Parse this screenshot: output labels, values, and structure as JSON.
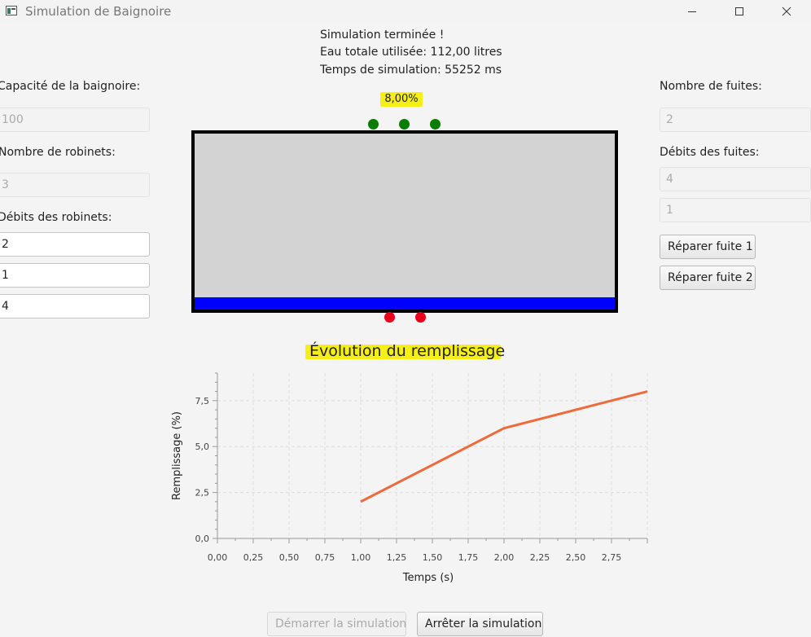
{
  "window": {
    "title": "Simulation de Baignoire",
    "controls": [
      "minimize",
      "maximize",
      "close"
    ]
  },
  "status": {
    "line1": "Simulation terminée !",
    "line2": "Eau totale utilisée: 112,00 litres",
    "line3": "Temps de simulation: 55252 ms"
  },
  "left_panel": {
    "capacity_label": "Capacité de la baignoire:",
    "capacity_value": "100",
    "taps_label": "Nombre de robinets:",
    "taps_value": "3",
    "tap_flows_label": "Débits des robinets:",
    "tap_flows": [
      "2",
      "1",
      "4"
    ]
  },
  "right_panel": {
    "leaks_label": "Nombre de fuites:",
    "leaks_value": "2",
    "leak_flows_label": "Débits des fuites:",
    "leak_flows": [
      "4",
      "1"
    ],
    "repair_buttons": [
      "Réparer fuite 1",
      "Réparer fuite 2"
    ]
  },
  "tub": {
    "fill_percent_label": "8,00%",
    "fill_fraction": 0.08,
    "tap_count": 3,
    "leak_count": 2
  },
  "bottom_buttons": {
    "start": "Démarrer la simulation",
    "stop": "Arrêter la simulation"
  },
  "colors": {
    "tap": "#0a7d00",
    "leak": "#e8001c",
    "water": "#0000ff",
    "tub_body": "#d3d3d3",
    "highlight": "#f5ef17",
    "line": "#ee6a3a"
  },
  "chart_data": {
    "type": "line",
    "title": "Évolution du remplissage",
    "xlabel": "Temps (s)",
    "ylabel": "Remplissage (%)",
    "xlim": [
      0,
      3.0
    ],
    "ylim": [
      0,
      9.0
    ],
    "x_ticks": [
      "0,00",
      "0,25",
      "0,50",
      "0,75",
      "1,00",
      "1,25",
      "1,50",
      "1,75",
      "2,00",
      "2,25",
      "2,50",
      "2,75"
    ],
    "y_ticks": [
      "0,0",
      "2,5",
      "5,0",
      "7,5"
    ],
    "grid": true,
    "legend": "none",
    "series": [
      {
        "x": [
          1.0,
          2.0,
          3.0
        ],
        "y": [
          2.0,
          6.0,
          8.0
        ]
      }
    ]
  }
}
